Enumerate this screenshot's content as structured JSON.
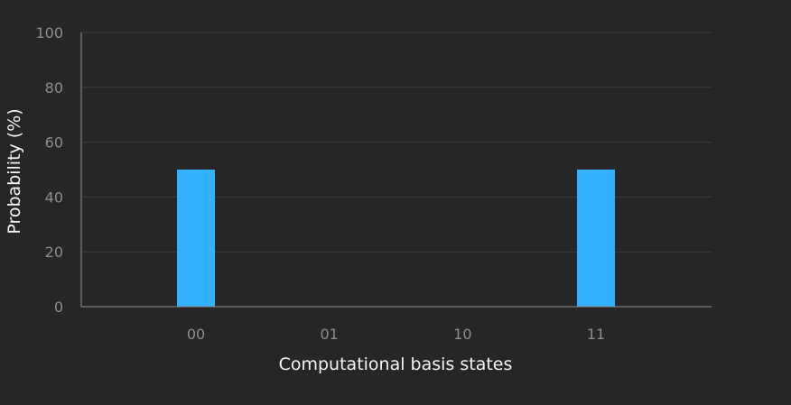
{
  "chart_data": {
    "type": "bar",
    "categories": [
      "00",
      "01",
      "10",
      "11"
    ],
    "values": [
      50,
      0,
      0,
      50
    ],
    "title": "",
    "xlabel": "Computational basis states",
    "ylabel": "Probability (%)",
    "ylim": [
      0,
      100
    ],
    "yticks": [
      "0",
      "20",
      "40",
      "60",
      "80",
      "100"
    ],
    "grid": true,
    "colors": {
      "background": "#262626",
      "bar": "#33b1ff",
      "grid": "#3d3d3d",
      "axis": "#8d8d8d",
      "tick_text": "#8d8d8d",
      "label_text": "#f4f4f4"
    }
  }
}
